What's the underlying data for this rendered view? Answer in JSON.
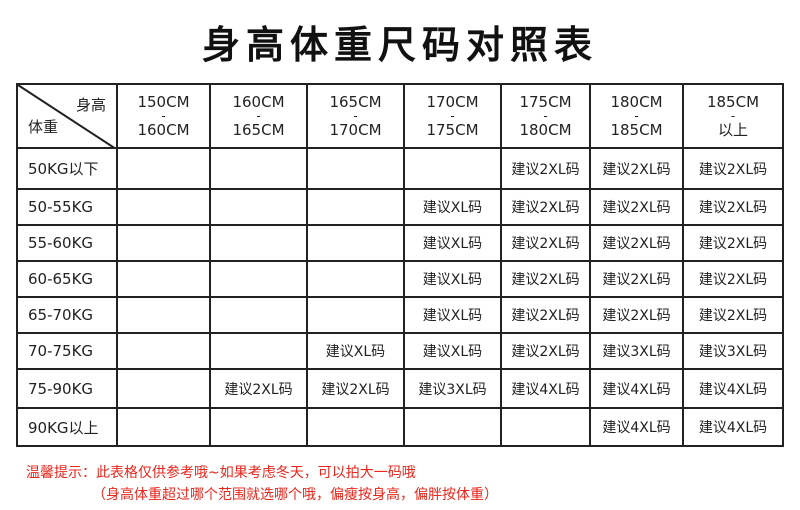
{
  "title": "身高体重尺码对照表",
  "corner": {
    "height_label": "身高",
    "weight_label": "体重"
  },
  "columns": [
    [
      "150CM",
      "-",
      "160CM"
    ],
    [
      "160CM",
      "-",
      "165CM"
    ],
    [
      "165CM",
      "-",
      "170CM"
    ],
    [
      "170CM",
      "-",
      "175CM"
    ],
    [
      "175CM",
      "-",
      "180CM"
    ],
    [
      "180CM",
      "-",
      "185CM"
    ],
    [
      "185CM",
      "-",
      "以上"
    ]
  ],
  "rows": [
    {
      "label": "50KG以下",
      "cells": [
        "",
        "",
        "",
        "",
        "建议2XL码",
        "建议2XL码",
        "建议2XL码"
      ]
    },
    {
      "label": "50-55KG",
      "cells": [
        "",
        "",
        "",
        "建议XL码",
        "建议2XL码",
        "建议2XL码",
        "建议2XL码"
      ]
    },
    {
      "label": "55-60KG",
      "cells": [
        "",
        "",
        "",
        "建议XL码",
        "建议2XL码",
        "建议2XL码",
        "建议2XL码"
      ]
    },
    {
      "label": "60-65KG",
      "cells": [
        "",
        "",
        "",
        "建议XL码",
        "建议2XL码",
        "建议2XL码",
        "建议2XL码"
      ]
    },
    {
      "label": "65-70KG",
      "cells": [
        "",
        "",
        "",
        "建议XL码",
        "建议2XL码",
        "建议2XL码",
        "建议2XL码"
      ]
    },
    {
      "label": "70-75KG",
      "cells": [
        "",
        "",
        "建议XL码",
        "建议XL码",
        "建议2XL码",
        "建议3XL码",
        "建议3XL码"
      ]
    },
    {
      "label": "75-90KG",
      "cells": [
        "",
        "建议2XL码",
        "建议2XL码",
        "建议3XL码",
        "建议4XL码",
        "建议4XL码",
        "建议4XL码"
      ]
    },
    {
      "label": "90KG以上",
      "cells": [
        "",
        "",
        "",
        "",
        "",
        "建议4XL码",
        "建议4XL码"
      ]
    }
  ],
  "note": {
    "line1": "温馨提示：此表格仅供参考哦~如果考虑冬天，可以拍大一码哦",
    "line2": "（身高体重超过哪个范围就选哪个哦，偏瘦按身高，偏胖按体重）"
  },
  "colors": {
    "note": "#e8261c"
  }
}
